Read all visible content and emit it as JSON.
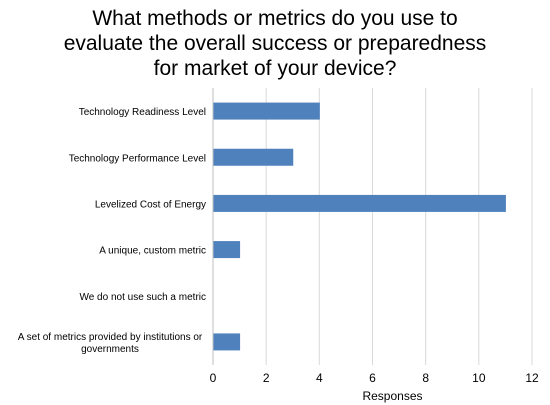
{
  "chart_data": {
    "type": "bar",
    "orientation": "horizontal",
    "title": [
      "What methods or metrics do you use to",
      "evaluate the overall success or preparedness",
      "for market of your device?"
    ],
    "categories": [
      [
        "Technology Readiness Level"
      ],
      [
        "Technology Performance Level"
      ],
      [
        "Levelized Cost of Energy"
      ],
      [
        "A unique, custom metric"
      ],
      [
        "We do not use such a metric"
      ],
      [
        "A set of metrics provided by institutions or",
        "governments"
      ]
    ],
    "values": [
      4,
      3,
      11,
      1,
      0,
      1
    ],
    "xlabel": "Responses",
    "ylabel": "",
    "xlim": [
      0,
      12
    ],
    "xticks": [
      0,
      2,
      4,
      6,
      8,
      10,
      12
    ],
    "grid": "vertical",
    "legend": "none",
    "colors": {
      "bar": "#4f81bd",
      "grid": "#d9d9d9",
      "axis": "#bfbfbf"
    }
  }
}
